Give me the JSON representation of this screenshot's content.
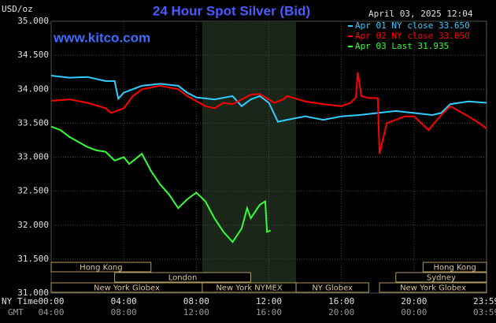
{
  "chart_data": {
    "type": "line",
    "title": "24 Hour Spot Silver (Bid)",
    "date_label": "April 03, 2025 12:04",
    "watermark": "www.kitco.com",
    "ylabel": "USD/oz",
    "x_row_label": "NY Time",
    "x2_row_label": "GMT",
    "xlim": [
      0,
      24
    ],
    "xticks": [
      {
        "value": 0,
        "label": "00:00"
      },
      {
        "value": 4,
        "label": "04:00"
      },
      {
        "value": 8,
        "label": "08:00"
      },
      {
        "value": 12,
        "label": "12:00"
      },
      {
        "value": 16,
        "label": "16:00"
      },
      {
        "value": 20,
        "label": "20:00"
      },
      {
        "value": 23.983,
        "label": "23:59"
      }
    ],
    "x2_labels": [
      "04:00",
      "08:00",
      "12:00",
      "16:00",
      "20:00",
      "00:00",
      "03:59"
    ],
    "ylim": [
      31,
      35
    ],
    "yticks": [
      {
        "value": 31,
        "label": "31.000"
      },
      {
        "value": 31.5,
        "label": "31.500"
      },
      {
        "value": 32,
        "label": "32.000"
      },
      {
        "value": 32.5,
        "label": "32.500"
      },
      {
        "value": 33,
        "label": "33.000"
      },
      {
        "value": 33.5,
        "label": "33.500"
      },
      {
        "value": 34,
        "label": "34.000"
      },
      {
        "value": 34.5,
        "label": "34.500"
      },
      {
        "value": 35,
        "label": "35.000"
      }
    ],
    "grid": true,
    "sessions": [
      [
        {
          "name": "Hong Kong",
          "start": 0,
          "end": 5.5
        },
        {
          "name": "Hong Kong",
          "start": 20.5,
          "end": 24
        }
      ],
      [
        {
          "name": "London",
          "start": 3.5,
          "end": 11
        },
        {
          "name": "Sydney",
          "start": 19,
          "end": 24
        }
      ],
      [
        {
          "name": "New York Globex",
          "start": 0,
          "end": 8.33
        },
        {
          "name": "New York NYMEX",
          "start": 8.33,
          "end": 13.5
        },
        {
          "name": "NY Globex",
          "start": 13.5,
          "end": 17.5
        },
        {
          "name": "New York Globex",
          "start": 18.1,
          "end": 24
        }
      ]
    ],
    "series": [
      {
        "name": "Apr 01 NY close 33.650",
        "color": "#33ccff",
        "x": [
          0,
          1,
          2,
          3,
          3.5,
          3.7,
          4,
          5,
          6,
          7,
          7.5,
          8,
          9,
          10,
          10.5,
          11,
          11.5,
          12,
          12.5,
          13,
          14,
          15,
          16,
          17,
          18,
          19,
          20,
          21,
          21.5,
          22,
          23,
          24
        ],
        "values": [
          34.2,
          34.17,
          34.18,
          34.12,
          34.12,
          33.86,
          33.95,
          34.05,
          34.08,
          34.05,
          33.95,
          33.88,
          33.85,
          33.9,
          33.75,
          33.85,
          33.9,
          33.8,
          33.52,
          33.55,
          33.6,
          33.55,
          33.6,
          33.62,
          33.65,
          33.68,
          33.65,
          33.62,
          33.65,
          33.78,
          33.82,
          33.8
        ]
      },
      {
        "name": "Apr 02 NY close 33.050",
        "color": "#ff0000",
        "x": [
          0,
          1,
          2,
          3,
          3.3,
          4,
          4.5,
          5,
          6,
          7,
          7.5,
          8.5,
          9,
          9.5,
          10,
          11,
          11.5,
          12.3,
          12.8,
          13,
          14,
          15,
          16,
          16.5,
          16.8,
          16.9,
          17.1,
          17.5,
          18,
          18.1,
          18.5,
          19.5,
          20,
          20.8,
          21.5,
          22,
          23,
          23.6,
          24
        ],
        "values": [
          33.83,
          33.85,
          33.8,
          33.72,
          33.65,
          33.72,
          33.9,
          34.0,
          34.05,
          34.0,
          33.9,
          33.75,
          33.72,
          33.8,
          33.78,
          33.92,
          33.93,
          33.8,
          33.85,
          33.9,
          33.82,
          33.78,
          33.75,
          33.8,
          33.88,
          34.25,
          33.9,
          33.87,
          33.87,
          33.05,
          33.5,
          33.6,
          33.6,
          33.4,
          33.62,
          33.75,
          33.6,
          33.5,
          33.42
        ]
      },
      {
        "name": "Apr 03 Last 31.935",
        "color": "#33ff33",
        "x": [
          0,
          0.5,
          1,
          2,
          2.5,
          3,
          3.5,
          4,
          4.3,
          5,
          5.5,
          6,
          6.5,
          7,
          7.5,
          8,
          8.5,
          9,
          9.5,
          10,
          10.5,
          10.8,
          11,
          11.5,
          11.8,
          11.9,
          12.1
        ],
        "values": [
          33.45,
          33.4,
          33.3,
          33.15,
          33.1,
          33.08,
          32.95,
          33.0,
          32.9,
          33.05,
          32.8,
          32.6,
          32.45,
          32.25,
          32.38,
          32.48,
          32.35,
          32.1,
          31.9,
          31.75,
          31.95,
          32.25,
          32.1,
          32.3,
          32.35,
          31.9,
          31.92
        ]
      }
    ]
  }
}
